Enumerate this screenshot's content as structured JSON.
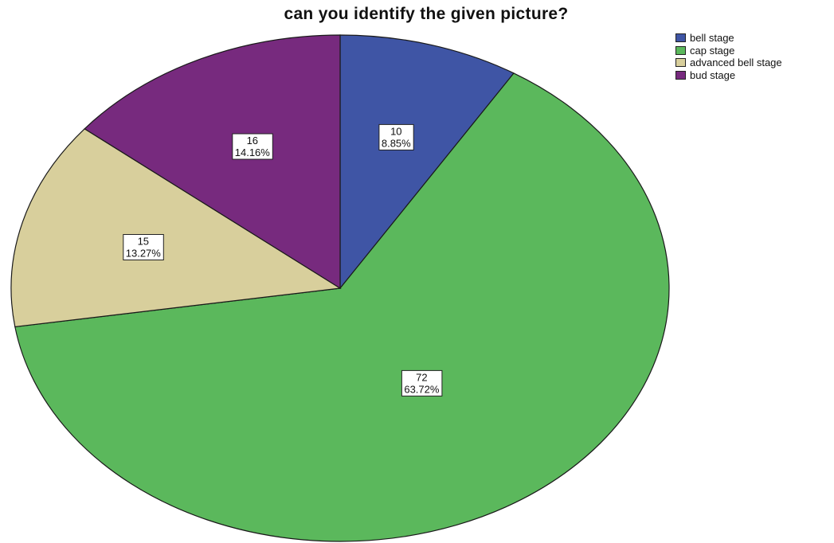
{
  "chart_data": {
    "type": "pie",
    "title": "can you identify the given picture?",
    "slices": [
      {
        "label": "bell stage",
        "value": 10,
        "percent": "8.85%",
        "color": "#3f55a5"
      },
      {
        "label": "cap stage",
        "value": 72,
        "percent": "63.72%",
        "color": "#5bb85c"
      },
      {
        "label": "advanced bell stage",
        "value": 15,
        "percent": "13.27%",
        "color": "#d8cf9c"
      },
      {
        "label": "bud stage",
        "value": 16,
        "percent": "14.16%",
        "color": "#772a7e"
      }
    ],
    "start_angle": "12 o'clock",
    "direction": "clockwise",
    "legend_position": "top-right"
  }
}
